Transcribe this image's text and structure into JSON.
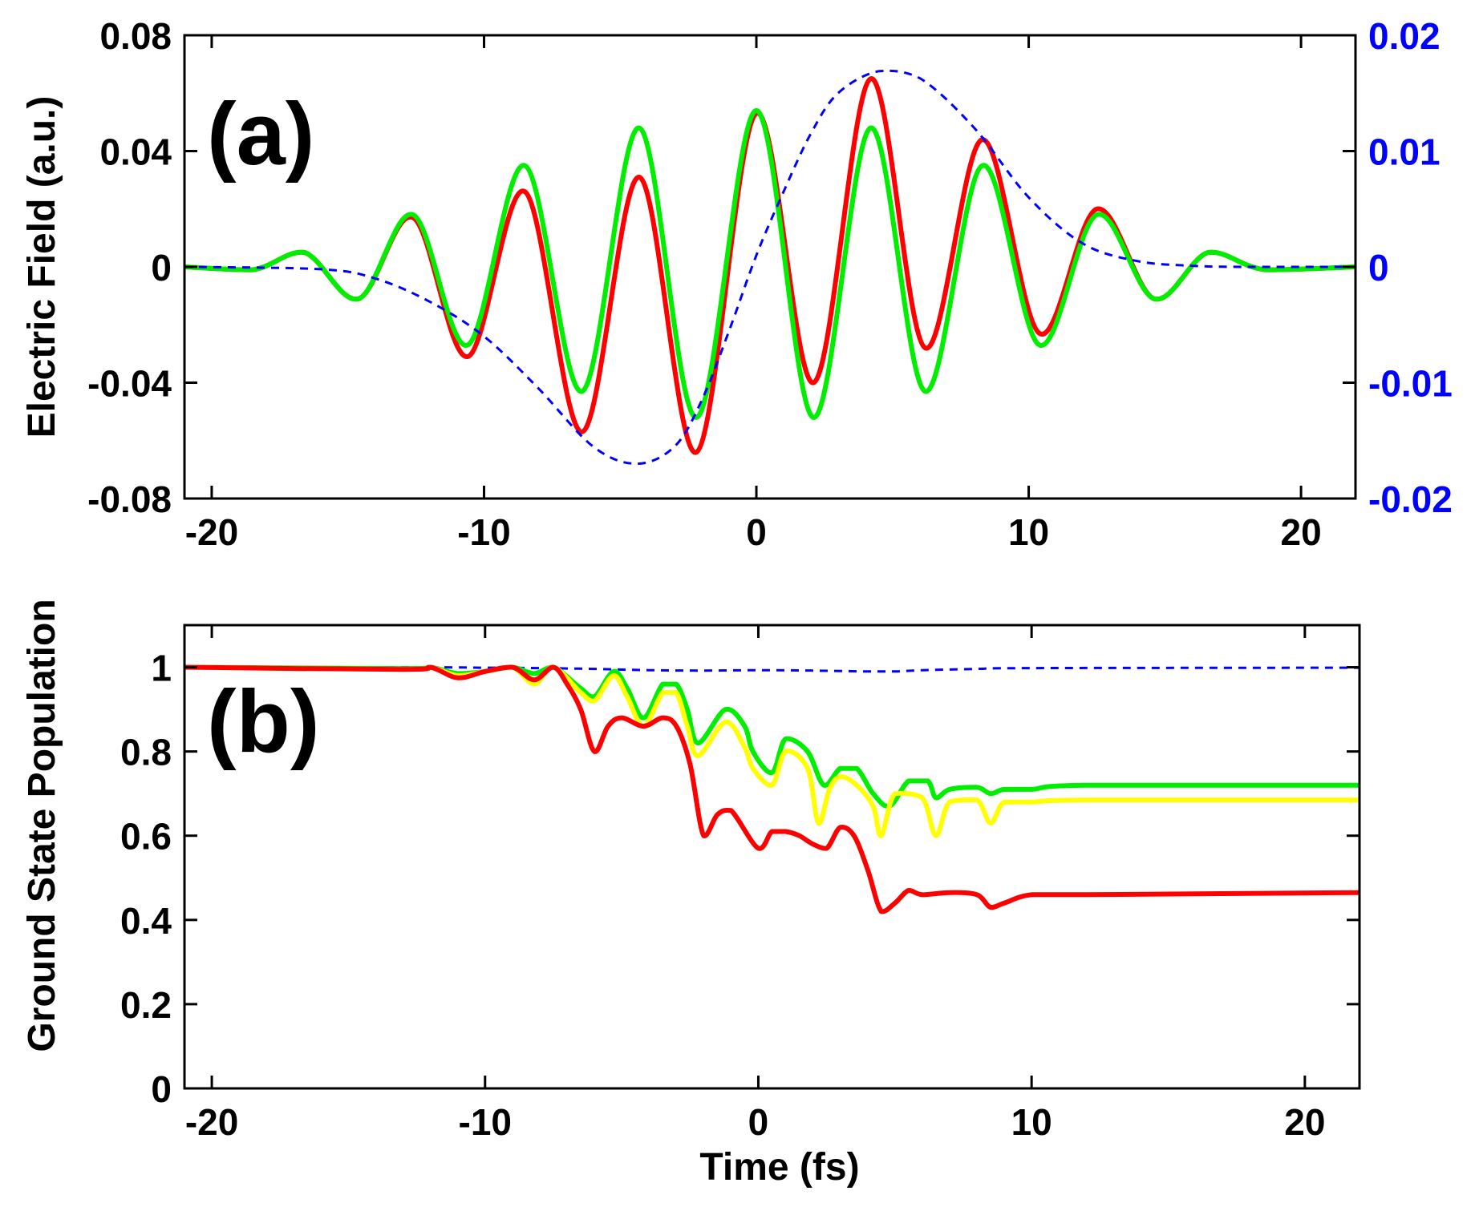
{
  "chart_data": [
    {
      "panel": "a",
      "type": "line",
      "panel_label": "(a)",
      "ylabel": "Electric Field (a.u.)",
      "xlabel": "",
      "xlim": [
        -21,
        22
      ],
      "ylim": [
        -0.08,
        0.08
      ],
      "y2lim": [
        -0.02,
        0.02
      ],
      "xticks": [
        -20,
        -10,
        0,
        10,
        20
      ],
      "xtick_labels": [
        "-20",
        "-10",
        "0",
        "10",
        "20"
      ],
      "yticks": [
        -0.08,
        -0.04,
        0,
        0.04,
        0.08
      ],
      "ytick_labels": [
        "-0.08",
        "-0.04",
        "0",
        "0.04",
        "0.08"
      ],
      "y2ticks": [
        -0.02,
        -0.01,
        0,
        0.01,
        0.02
      ],
      "y2tick_labels": [
        "-0.02",
        "-0.01",
        "0",
        "0.01",
        "0.02"
      ],
      "y2_color": "#0000ff",
      "series": [
        {
          "name": "red field",
          "color": "#ff0000",
          "axis": "left",
          "dash": false,
          "x": [
            -21,
            -18.5,
            -16.6,
            -14.6,
            -12.6,
            -10.6,
            -8.5,
            -6.4,
            -4.3,
            -2.2,
            0,
            2.1,
            4.2,
            6.2,
            8.3,
            10.4,
            12.5,
            14.6,
            16.6,
            18.7,
            22
          ],
          "y": [
            0,
            -0.001,
            0.005,
            -0.011,
            0.017,
            -0.031,
            0.026,
            -0.057,
            0.031,
            -0.064,
            0.053,
            -0.04,
            0.065,
            -0.028,
            0.044,
            -0.023,
            0.02,
            -0.011,
            0.005,
            -0.001,
            0
          ]
        },
        {
          "name": "green field",
          "color": "#00ee00",
          "axis": "left",
          "dash": false,
          "x": [
            -21,
            -18.5,
            -16.6,
            -14.6,
            -12.6,
            -10.6,
            -8.5,
            -6.4,
            -4.3,
            -2.2,
            0,
            2.1,
            4.2,
            6.2,
            8.3,
            10.4,
            12.5,
            14.6,
            16.6,
            18.7,
            22
          ],
          "y": [
            0,
            -0.001,
            0.005,
            -0.011,
            0.018,
            -0.027,
            0.035,
            -0.043,
            0.048,
            -0.052,
            0.054,
            -0.052,
            0.048,
            -0.043,
            0.035,
            -0.027,
            0.018,
            -0.011,
            0.005,
            -0.001,
            0
          ]
        },
        {
          "name": "blue dashed field",
          "color": "#0000ff",
          "axis": "right",
          "dash": true,
          "x": [
            -21,
            -16,
            -14,
            -12,
            -10,
            -8,
            -6,
            -4.4,
            -3,
            -2,
            -1,
            0,
            1,
            2,
            3,
            4.5,
            6,
            8,
            10,
            12,
            14,
            16,
            18,
            22
          ],
          "y": [
            0,
            -0.0002,
            -0.001,
            -0.003,
            -0.006,
            -0.0105,
            -0.0155,
            -0.017,
            -0.0155,
            -0.0115,
            -0.0055,
            0.001,
            0.0065,
            0.0115,
            0.015,
            0.0169,
            0.0163,
            0.012,
            0.006,
            0.002,
            0.0005,
            0.0001,
            0,
            0
          ]
        }
      ]
    },
    {
      "panel": "b",
      "type": "line",
      "panel_label": "(b)",
      "ylabel": "Ground State Population",
      "xlabel": "Time (fs)",
      "xlim": [
        -21,
        22
      ],
      "ylim": [
        0,
        1.1
      ],
      "xticks": [
        -20,
        -10,
        0,
        10,
        20
      ],
      "xtick_labels": [
        "-20",
        "-10",
        "0",
        "10",
        "20"
      ],
      "yticks": [
        0,
        0.2,
        0.4,
        0.6,
        0.8,
        1
      ],
      "ytick_labels": [
        "0",
        "0.2",
        "0.4",
        "0.6",
        "0.8",
        "1"
      ],
      "series": [
        {
          "name": "blue dashed population",
          "color": "#0000ff",
          "dash": true,
          "x": [
            -21,
            -13,
            -10,
            -8,
            -6,
            -4,
            -2,
            0,
            2,
            4,
            5,
            6,
            8,
            10,
            22
          ],
          "y": [
            1,
            1,
            0.999,
            0.998,
            0.996,
            0.993,
            0.992,
            0.993,
            0.992,
            0.99,
            0.99,
            0.993,
            0.996,
            0.998,
            0.999
          ]
        },
        {
          "name": "green population",
          "color": "#00ee00",
          "dash": false,
          "x": [
            -21,
            -13,
            -12,
            -11,
            -10,
            -9,
            -8.2,
            -7.5,
            -6.5,
            -6,
            -5.3,
            -4.8,
            -4.2,
            -3.5,
            -3,
            -2.6,
            -2.2,
            -1.2,
            -0.5,
            -0.2,
            0.5,
            1,
            1.8,
            2.4,
            3,
            3.6,
            4.2,
            4.8,
            5.5,
            6.2,
            6.5,
            7,
            8,
            8.5,
            9,
            10,
            12,
            22
          ],
          "y": [
            1,
            0.997,
            1,
            0.985,
            0.99,
            1,
            0.985,
            1,
            0.95,
            0.93,
            0.99,
            0.95,
            0.88,
            0.96,
            0.96,
            0.9,
            0.82,
            0.9,
            0.86,
            0.8,
            0.75,
            0.83,
            0.8,
            0.72,
            0.76,
            0.76,
            0.7,
            0.67,
            0.73,
            0.73,
            0.69,
            0.71,
            0.715,
            0.7,
            0.71,
            0.71,
            0.72,
            0.72
          ]
        },
        {
          "name": "yellow population",
          "color": "#ffff00",
          "dash": false,
          "x": [
            -21,
            -13,
            -12,
            -11,
            -10,
            -9,
            -8.2,
            -7.5,
            -6.5,
            -6,
            -5.3,
            -4.8,
            -4.2,
            -3.5,
            -3,
            -2.6,
            -2.2,
            -1.2,
            -0.5,
            -0.2,
            0.5,
            1,
            1.8,
            2.2,
            2.6,
            3,
            3.6,
            4.2,
            4.5,
            5,
            6,
            6.5,
            7,
            8,
            8.5,
            9,
            10,
            12,
            22
          ],
          "y": [
            1,
            0.995,
            1,
            0.98,
            0.99,
            1,
            0.96,
            1,
            0.94,
            0.92,
            0.98,
            0.93,
            0.86,
            0.94,
            0.94,
            0.86,
            0.79,
            0.87,
            0.81,
            0.76,
            0.72,
            0.8,
            0.76,
            0.63,
            0.71,
            0.74,
            0.72,
            0.67,
            0.6,
            0.7,
            0.69,
            0.6,
            0.68,
            0.685,
            0.63,
            0.68,
            0.68,
            0.685,
            0.685
          ]
        },
        {
          "name": "red population",
          "color": "#ff0000",
          "dash": false,
          "x": [
            -21,
            -13,
            -12,
            -11,
            -10,
            -9,
            -8.2,
            -7.5,
            -7,
            -6.5,
            -6,
            -5.5,
            -5,
            -4.2,
            -3.5,
            -3,
            -2.5,
            -2,
            -1.5,
            -1,
            0,
            0.5,
            1,
            1.5,
            2,
            2.5,
            3,
            3.5,
            4,
            4.5,
            5,
            5.5,
            6,
            7,
            8,
            8.5,
            9,
            10,
            12,
            22
          ],
          "y": [
            1,
            0.995,
            1,
            0.975,
            0.99,
            1,
            0.97,
            1,
            0.96,
            0.9,
            0.8,
            0.86,
            0.88,
            0.86,
            0.88,
            0.86,
            0.77,
            0.6,
            0.65,
            0.66,
            0.57,
            0.61,
            0.61,
            0.6,
            0.58,
            0.57,
            0.62,
            0.6,
            0.52,
            0.42,
            0.44,
            0.47,
            0.46,
            0.465,
            0.46,
            0.43,
            0.44,
            0.46,
            0.46,
            0.465
          ]
        }
      ]
    }
  ]
}
